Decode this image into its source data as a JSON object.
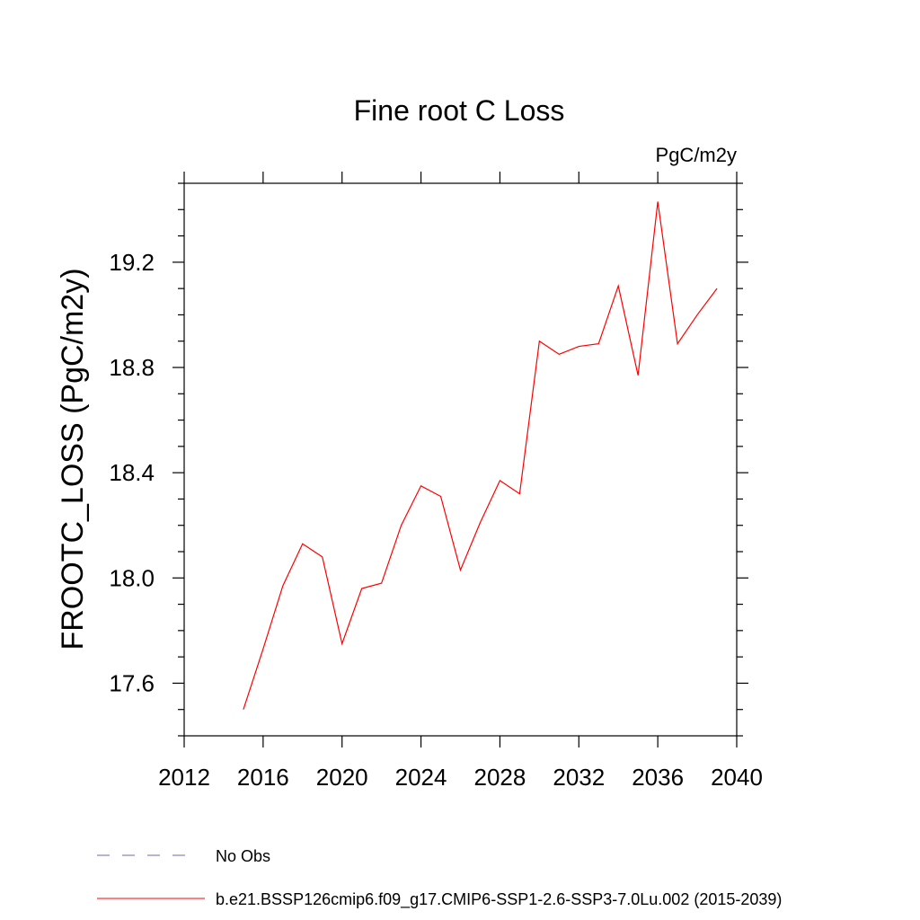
{
  "chart_data": {
    "type": "line",
    "title": "Fine root C Loss",
    "units_label": "PgC/m2y",
    "ylabel": "FROOTC_LOSS  (PgC/m2y)",
    "xlabel": "",
    "xlim": [
      2012,
      2040
    ],
    "ylim": [
      17.4,
      19.5
    ],
    "x_ticks": [
      2012,
      2016,
      2020,
      2024,
      2028,
      2032,
      2036,
      2040
    ],
    "x_tick_labels": [
      "2012",
      "2016",
      "2020",
      "2024",
      "2028",
      "2032",
      "2036",
      "2040"
    ],
    "y_ticks": [
      17.6,
      18.0,
      18.4,
      18.8,
      19.2
    ],
    "y_tick_labels": [
      "17.6",
      "18.0",
      "18.4",
      "18.8",
      "19.2"
    ],
    "grid": false,
    "legend_position": "bottom",
    "series": [
      {
        "name": "b.e21.BSSP126cmip6.f09_g17.CMIP6-SSP1-2.6-SSP3-7.0Lu.002 (2015-2039)",
        "color": "#ff0000",
        "x": [
          2015,
          2016,
          2017,
          2018,
          2019,
          2020,
          2021,
          2022,
          2023,
          2024,
          2025,
          2026,
          2027,
          2028,
          2029,
          2030,
          2031,
          2032,
          2033,
          2034,
          2035,
          2036,
          2037,
          2038,
          2039
        ],
        "values": [
          17.5,
          17.73,
          17.97,
          18.13,
          18.08,
          17.75,
          17.96,
          17.98,
          18.2,
          18.35,
          18.31,
          18.03,
          18.21,
          18.37,
          18.32,
          18.9,
          18.85,
          18.88,
          18.89,
          19.11,
          18.77,
          19.43,
          18.89,
          19.0,
          19.1
        ]
      }
    ],
    "legend": [
      {
        "label": "No Obs",
        "color": "#6a6aa8",
        "style": "dashed"
      },
      {
        "label": "b.e21.BSSP126cmip6.f09_g17.CMIP6-SSP1-2.6-SSP3-7.0Lu.002 (2015-2039)",
        "color": "#ff0000",
        "style": "solid"
      }
    ]
  }
}
